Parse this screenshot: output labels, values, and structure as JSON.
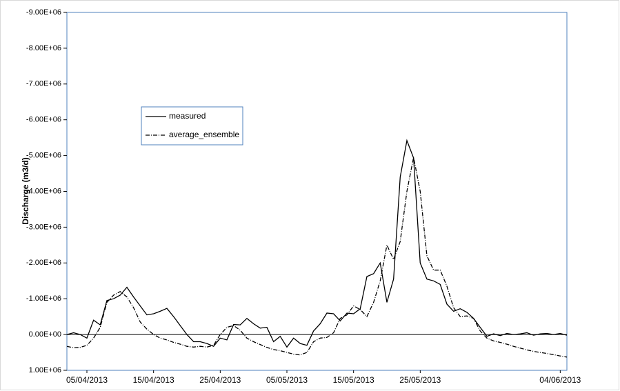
{
  "chart_data": {
    "type": "line",
    "y_label": "Discharge (m3/d)",
    "categories": [
      null,
      null,
      null,
      "05/04/2013",
      null,
      null,
      null,
      null,
      null,
      null,
      null,
      null,
      null,
      "15/04/2013",
      null,
      null,
      null,
      null,
      null,
      null,
      null,
      null,
      null,
      "25/04/2013",
      null,
      null,
      null,
      null,
      null,
      null,
      null,
      null,
      null,
      "05/05/2013",
      null,
      null,
      null,
      null,
      null,
      null,
      null,
      null,
      null,
      "15/05/2013",
      null,
      null,
      null,
      null,
      null,
      null,
      null,
      null,
      null,
      "25/05/2013",
      null,
      null,
      null,
      null,
      null,
      null,
      null,
      null,
      null,
      null,
      null,
      null,
      null,
      null,
      null,
      null,
      null,
      null,
      null,
      null,
      "04/06/2013",
      null
    ],
    "series": [
      {
        "name": "measured",
        "color": "#000000",
        "style": "solid",
        "values": [
          0,
          -50000,
          0,
          100000,
          -400000,
          -270000,
          -950000,
          -1000000,
          -1100000,
          -1320000,
          -1050000,
          -800000,
          -550000,
          -580000,
          -650000,
          -730000,
          -500000,
          -250000,
          0,
          200000,
          200000,
          250000,
          330000,
          100000,
          150000,
          -280000,
          -270000,
          -450000,
          -300000,
          -180000,
          -200000,
          200000,
          50000,
          350000,
          100000,
          250000,
          300000,
          -100000,
          -300000,
          -600000,
          -580000,
          -380000,
          -600000,
          -580000,
          -720000,
          -1620000,
          -1700000,
          -2000000,
          -900000,
          -1550000,
          -4400000,
          -5420000,
          -4930000,
          -2000000,
          -1550000,
          -1500000,
          -1400000,
          -850000,
          -650000,
          -720000,
          -620000,
          -450000,
          -200000,
          50000,
          -20000,
          30000,
          -30000,
          0,
          -20000,
          -50000,
          20000,
          -20000,
          -30000,
          0,
          -30000,
          20000
        ]
      },
      {
        "name": "average_ensemble",
        "color": "#000000",
        "style": "dashdot",
        "values": [
          330000,
          370000,
          360000,
          300000,
          100000,
          -200000,
          -900000,
          -1100000,
          -1200000,
          -1050000,
          -750000,
          -350000,
          -150000,
          0,
          100000,
          150000,
          220000,
          270000,
          330000,
          350000,
          330000,
          350000,
          300000,
          0,
          -200000,
          -250000,
          -120000,
          100000,
          200000,
          280000,
          360000,
          420000,
          450000,
          500000,
          550000,
          570000,
          500000,
          200000,
          100000,
          80000,
          -50000,
          -450000,
          -550000,
          -800000,
          -700000,
          -500000,
          -900000,
          -1500000,
          -2500000,
          -2100000,
          -2600000,
          -4000000,
          -4950000,
          -4000000,
          -2200000,
          -1800000,
          -1800000,
          -1350000,
          -750000,
          -500000,
          -520000,
          -450000,
          -100000,
          100000,
          180000,
          220000,
          270000,
          330000,
          380000,
          430000,
          470000,
          500000,
          530000,
          560000,
          600000,
          630000
        ]
      }
    ],
    "ylim": [
      1000000,
      -9000000
    ],
    "yticks": [
      {
        "value": 1000000,
        "label": "1.00E+06"
      },
      {
        "value": 0,
        "label": "0.00E+00"
      },
      {
        "value": -1000000,
        "label": "-1.00E+06"
      },
      {
        "value": -2000000,
        "label": "-2.00E+06"
      },
      {
        "value": -3000000,
        "label": "-3.00E+06"
      },
      {
        "value": -4000000,
        "label": "-4.00E+06"
      },
      {
        "value": -5000000,
        "label": "-5.00E+06"
      },
      {
        "value": -6000000,
        "label": "-6.00E+06"
      },
      {
        "value": -7000000,
        "label": "-7.00E+06"
      },
      {
        "value": -8000000,
        "label": "-8.00E+06"
      },
      {
        "value": -9000000,
        "label": "-9.00E+06"
      }
    ],
    "legend": "upper-left"
  }
}
